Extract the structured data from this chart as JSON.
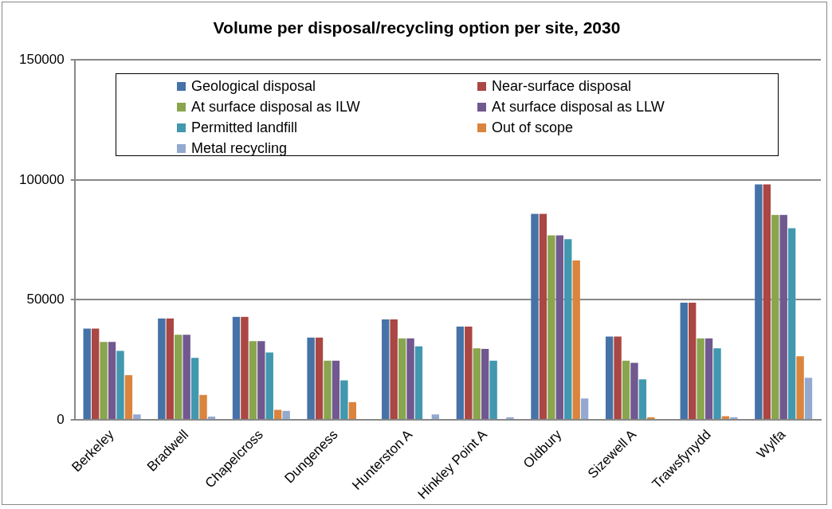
{
  "chart_data": {
    "type": "bar",
    "title": "Volume per disposal/recycling option per site, 2030",
    "categories": [
      "Berkeley",
      "Bradwell",
      "Chapelcross",
      "Dungeness",
      "Hunterston A",
      "Hinkley Point A",
      "Oldbury",
      "Sizewell A",
      "Trawsfynydd",
      "Wylfa"
    ],
    "series": [
      {
        "name": "Geological disposal",
        "color": "#4572a7",
        "values": [
          38200,
          42400,
          43100,
          34500,
          42000,
          39000,
          86000,
          34900,
          49000,
          98300
        ]
      },
      {
        "name": "Near-surface disposal",
        "color": "#aa4643",
        "values": [
          38200,
          42400,
          43100,
          34500,
          42000,
          39000,
          86000,
          34900,
          49000,
          98300
        ]
      },
      {
        "name": "At surface disposal as ILW",
        "color": "#89a54e",
        "values": [
          32600,
          35600,
          33000,
          24800,
          34100,
          30000,
          77000,
          24800,
          34100,
          85600
        ]
      },
      {
        "name": "At surface disposal as LLW",
        "color": "#71588f",
        "values": [
          32600,
          35600,
          33000,
          24800,
          34100,
          29700,
          77000,
          23900,
          34100,
          85600
        ]
      },
      {
        "name": "Permitted landfill",
        "color": "#4198af",
        "values": [
          28900,
          26000,
          28200,
          16600,
          30800,
          24800,
          75500,
          17000,
          30000,
          80000
        ]
      },
      {
        "name": "Out of scope",
        "color": "#db843d",
        "values": [
          18800,
          10600,
          4300,
          7600,
          0,
          0,
          66600,
          1300,
          1700,
          26700
        ]
      },
      {
        "name": "Metal recycling",
        "color": "#93a9cf",
        "values": [
          2400,
          1500,
          3900,
          null,
          2400,
          1300,
          9100,
          null,
          1300,
          17700
        ]
      }
    ],
    "ylim": [
      0,
      150000
    ],
    "yticks": [
      0,
      50000,
      100000,
      150000
    ],
    "grid": "y",
    "legend": "top"
  }
}
